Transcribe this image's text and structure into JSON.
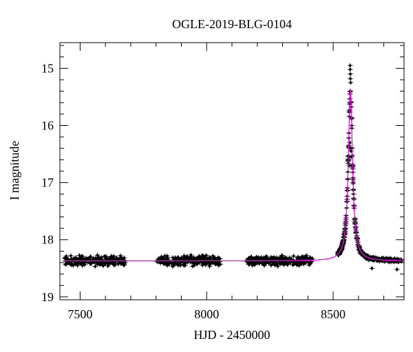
{
  "chart_data": {
    "type": "scatter",
    "title": "OGLE-2019-BLG-0104",
    "xlabel": "HJD - 2450000",
    "ylabel": "I magnitude",
    "xlim": [
      7420,
      8780
    ],
    "ylim": [
      19.05,
      14.55
    ],
    "y_inverted": true,
    "grid": false,
    "x_ticks": [
      7500,
      8000,
      8500
    ],
    "y_ticks": [
      15,
      16,
      17,
      18,
      19
    ],
    "x_minor_step": 100,
    "y_minor_step": 0.2,
    "colors": {
      "points": "#000000",
      "model": "#ff00ff",
      "frame": "#000000"
    },
    "data_segments": [
      {
        "x_start": 7440,
        "x_end": 7680,
        "mean_mag": 18.37,
        "spread": 0.12,
        "count": 250
      },
      {
        "x_start": 7800,
        "x_end": 8055,
        "mean_mag": 18.37,
        "spread": 0.12,
        "count": 250
      },
      {
        "x_start": 8160,
        "x_end": 8420,
        "mean_mag": 18.36,
        "spread": 0.12,
        "count": 250
      }
    ],
    "peak_points": [
      {
        "x": 8567,
        "y": 14.95
      },
      {
        "x": 8567,
        "y": 15.02
      },
      {
        "x": 8568,
        "y": 15.1
      },
      {
        "x": 8568,
        "y": 15.18
      },
      {
        "x": 8569,
        "y": 15.25
      },
      {
        "x": 8566,
        "y": 16.3
      },
      {
        "x": 8565,
        "y": 16.4
      },
      {
        "x": 8564,
        "y": 16.55
      },
      {
        "x": 8563,
        "y": 16.7
      },
      {
        "x": 8571,
        "y": 16.45
      },
      {
        "x": 8573,
        "y": 16.55
      },
      {
        "x": 8576,
        "y": 16.7
      },
      {
        "x": 8653,
        "y": 18.5
      },
      {
        "x": 8752,
        "y": 18.52
      }
    ],
    "model": {
      "baseline": 18.37,
      "t0": 8568,
      "peak": 15.38,
      "width": 10
    },
    "decline_scatter": {
      "x_start": 8520,
      "x_end": 8770,
      "count": 450,
      "spread": 0.05
    }
  }
}
